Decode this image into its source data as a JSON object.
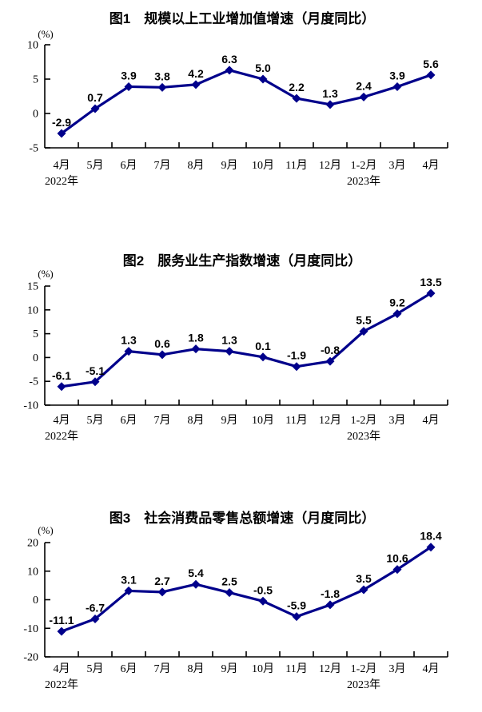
{
  "page": {
    "background": "#ffffff",
    "text_color": "#000000",
    "line_color": "#00008b"
  },
  "chart_data": [
    {
      "type": "line",
      "title": "图1　规模以上工业增加值增速（月度同比）",
      "unit_label": "(%)",
      "categories": [
        "4月",
        "5月",
        "6月",
        "7月",
        "8月",
        "9月",
        "10月",
        "11月",
        "12月",
        "1-2月",
        "3月",
        "4月"
      ],
      "year_notes": [
        {
          "index": 0,
          "label": "2022年"
        },
        {
          "index": 9,
          "label": "2023年"
        }
      ],
      "values": [
        -2.9,
        0.7,
        3.9,
        3.8,
        4.2,
        6.3,
        5.0,
        2.2,
        1.3,
        2.4,
        3.9,
        5.6
      ],
      "point_labels": [
        "-2.9",
        "0.7",
        "3.9",
        "3.8",
        "4.2",
        "6.3",
        "5.0",
        "2.2",
        "1.3",
        "2.4",
        "3.9",
        "5.6"
      ],
      "ylim": [
        -5,
        10
      ],
      "yticks": [
        10,
        5,
        0,
        -5
      ],
      "line_color": "#00008b",
      "marker": "diamond",
      "grid": false,
      "legend": "none"
    },
    {
      "type": "line",
      "title": "图2　服务业生产指数增速（月度同比）",
      "unit_label": "(%)",
      "categories": [
        "4月",
        "5月",
        "6月",
        "7月",
        "8月",
        "9月",
        "10月",
        "11月",
        "12月",
        "1-2月",
        "3月",
        "4月"
      ],
      "year_notes": [
        {
          "index": 0,
          "label": "2022年"
        },
        {
          "index": 9,
          "label": "2023年"
        }
      ],
      "values": [
        -6.1,
        -5.1,
        1.3,
        0.6,
        1.8,
        1.3,
        0.1,
        -1.9,
        -0.8,
        5.5,
        9.2,
        13.5
      ],
      "point_labels": [
        "-6.1",
        "-5.1",
        "1.3",
        "0.6",
        "1.8",
        "1.3",
        "0.1",
        "-1.9",
        "-0.8",
        "5.5",
        "9.2",
        "13.5"
      ],
      "ylim": [
        -10,
        15
      ],
      "yticks": [
        15,
        10,
        5,
        0,
        -5,
        -10
      ],
      "line_color": "#00008b",
      "marker": "diamond",
      "grid": false,
      "legend": "none"
    },
    {
      "type": "line",
      "title": "图3　社会消费品零售总额增速（月度同比）",
      "unit_label": "(%)",
      "categories": [
        "4月",
        "5月",
        "6月",
        "7月",
        "8月",
        "9月",
        "10月",
        "11月",
        "12月",
        "1-2月",
        "3月",
        "4月"
      ],
      "year_notes": [
        {
          "index": 0,
          "label": "2022年"
        },
        {
          "index": 9,
          "label": "2023年"
        }
      ],
      "values": [
        -11.1,
        -6.7,
        3.1,
        2.7,
        5.4,
        2.5,
        -0.5,
        -5.9,
        -1.8,
        3.5,
        10.6,
        18.4
      ],
      "point_labels": [
        "-11.1",
        "-6.7",
        "3.1",
        "2.7",
        "5.4",
        "2.5",
        "-0.5",
        "-5.9",
        "-1.8",
        "3.5",
        "10.6",
        "18.4"
      ],
      "ylim": [
        -20,
        20
      ],
      "yticks": [
        20,
        10,
        0,
        -10,
        -20
      ],
      "line_color": "#00008b",
      "marker": "diamond",
      "grid": false,
      "legend": "none"
    }
  ]
}
